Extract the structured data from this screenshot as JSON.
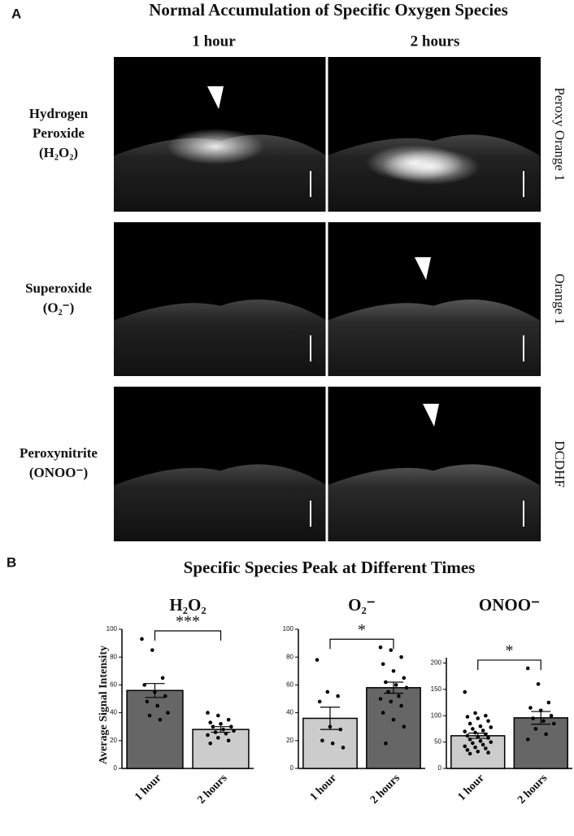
{
  "panel_a": {
    "letter": "A",
    "title": "Normal Accumulation of Specific Oxygen Species",
    "columns": [
      "1 hour",
      "2 hours"
    ],
    "rows": [
      {
        "label": [
          "Hydrogen",
          "Peroxide",
          "(H₂O₂)"
        ],
        "probe": "Peroxy Orange 1"
      },
      {
        "label": [
          "Superoxide",
          "(O₂⁻)"
        ],
        "probe": "Orange 1"
      },
      {
        "label": [
          "Peroxynitrite",
          "(ONOO⁻)"
        ],
        "probe": "DCDHF"
      }
    ]
  },
  "panel_b": {
    "letter": "B",
    "title": "Specific Species Peak at Different Times",
    "y_label": "Average Signal Intensity"
  },
  "chart_data": [
    {
      "type": "bar",
      "title": "H₂O₂",
      "categories": [
        "1 hour",
        "2 hours"
      ],
      "values": [
        56,
        28
      ],
      "errors": [
        5,
        2
      ],
      "colors": [
        "#666666",
        "#cccccc"
      ],
      "significance": "***",
      "points": [
        [
          93,
          85,
          65,
          60,
          55,
          52,
          48,
          45,
          40,
          38,
          35
        ],
        [
          40,
          38,
          35,
          33,
          32,
          30,
          30,
          28,
          27,
          26,
          25,
          24,
          22,
          20,
          18
        ]
      ],
      "ylim": [
        0,
        100
      ],
      "yticks": [
        0,
        20,
        40,
        60,
        80,
        100
      ]
    },
    {
      "type": "bar",
      "title": "O₂⁻",
      "categories": [
        "1 hour",
        "2 hours"
      ],
      "values": [
        36,
        58
      ],
      "errors": [
        8,
        4
      ],
      "colors": [
        "#cccccc",
        "#666666"
      ],
      "significance": "*",
      "points": [
        [
          78,
          55,
          52,
          48,
          30,
          28,
          20,
          18,
          15
        ],
        [
          87,
          85,
          80,
          75,
          70,
          65,
          62,
          60,
          58,
          55,
          52,
          50,
          48,
          45,
          40,
          35,
          30,
          18
        ]
      ],
      "ylim": [
        0,
        100
      ],
      "yticks": [
        0,
        20,
        40,
        60,
        80,
        100
      ]
    },
    {
      "type": "bar",
      "title": "ONOO⁻",
      "categories": [
        "1 hour",
        "2 hours"
      ],
      "values": [
        62,
        96
      ],
      "errors": [
        5,
        12
      ],
      "colors": [
        "#cccccc",
        "#666666"
      ],
      "significance": "*",
      "points": [
        [
          145,
          105,
          100,
          98,
          95,
          90,
          85,
          80,
          78,
          75,
          72,
          70,
          68,
          65,
          62,
          60,
          58,
          55,
          52,
          50,
          48,
          45,
          42,
          40,
          38,
          35,
          32,
          30,
          28
        ],
        [
          190,
          160,
          125,
          115,
          110,
          100,
          95,
          90,
          85,
          75,
          65,
          55
        ]
      ],
      "ylim": [
        0,
        210
      ],
      "yticks": [
        0,
        50,
        100,
        150,
        200
      ]
    }
  ]
}
